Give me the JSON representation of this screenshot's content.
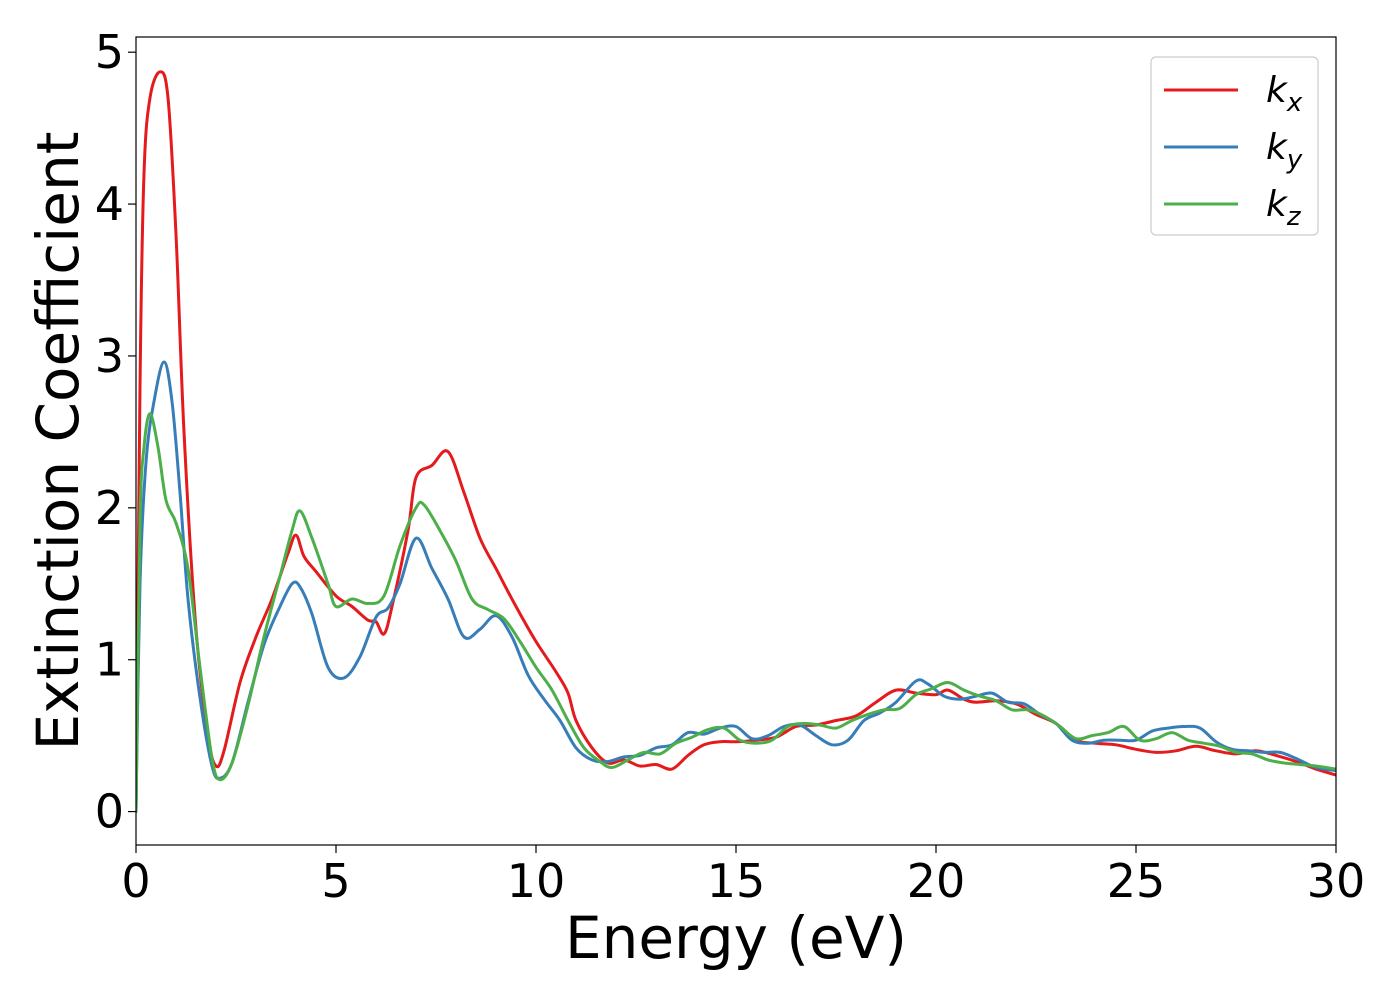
{
  "chart_data": {
    "type": "line",
    "xlabel": "Energy (eV)",
    "ylabel": "Extinction Coefficient",
    "xlim": [
      0,
      30
    ],
    "ylim": [
      -0.22,
      5.1
    ],
    "xticks": [
      0,
      5,
      10,
      15,
      20,
      25,
      30
    ],
    "yticks": [
      0,
      1,
      2,
      3,
      4,
      5
    ],
    "grid": false,
    "legend_position": "top-right",
    "series": [
      {
        "name": "k_x",
        "legend_base": "k",
        "legend_sub": "x",
        "color": "#e41a1c",
        "points": [
          [
            0,
            0
          ],
          [
            0.1,
            2.8
          ],
          [
            0.2,
            4.2
          ],
          [
            0.35,
            4.7
          ],
          [
            0.6,
            4.87
          ],
          [
            0.8,
            4.7
          ],
          [
            1.0,
            3.8
          ],
          [
            1.2,
            2.5
          ],
          [
            1.5,
            1.2
          ],
          [
            1.8,
            0.5
          ],
          [
            2.0,
            0.3
          ],
          [
            2.2,
            0.4
          ],
          [
            2.6,
            0.85
          ],
          [
            3.0,
            1.15
          ],
          [
            3.4,
            1.4
          ],
          [
            3.8,
            1.7
          ],
          [
            4.0,
            1.82
          ],
          [
            4.2,
            1.68
          ],
          [
            4.5,
            1.58
          ],
          [
            5.0,
            1.42
          ],
          [
            5.4,
            1.35
          ],
          [
            5.8,
            1.26
          ],
          [
            6.0,
            1.25
          ],
          [
            6.2,
            1.17
          ],
          [
            6.4,
            1.35
          ],
          [
            6.8,
            1.85
          ],
          [
            7.0,
            2.2
          ],
          [
            7.4,
            2.28
          ],
          [
            7.8,
            2.37
          ],
          [
            8.2,
            2.1
          ],
          [
            8.6,
            1.8
          ],
          [
            9.0,
            1.6
          ],
          [
            9.5,
            1.35
          ],
          [
            10.0,
            1.12
          ],
          [
            10.5,
            0.92
          ],
          [
            10.8,
            0.78
          ],
          [
            11.0,
            0.6
          ],
          [
            11.4,
            0.42
          ],
          [
            11.8,
            0.32
          ],
          [
            12.2,
            0.34
          ],
          [
            12.6,
            0.3
          ],
          [
            13.0,
            0.31
          ],
          [
            13.4,
            0.28
          ],
          [
            13.8,
            0.37
          ],
          [
            14.2,
            0.44
          ],
          [
            14.6,
            0.46
          ],
          [
            15.0,
            0.46
          ],
          [
            15.5,
            0.47
          ],
          [
            16.0,
            0.49
          ],
          [
            16.5,
            0.56
          ],
          [
            17.0,
            0.57
          ],
          [
            17.5,
            0.6
          ],
          [
            18.0,
            0.63
          ],
          [
            18.5,
            0.72
          ],
          [
            19.0,
            0.8
          ],
          [
            19.5,
            0.78
          ],
          [
            20.0,
            0.77
          ],
          [
            20.3,
            0.8
          ],
          [
            20.7,
            0.74
          ],
          [
            21.0,
            0.72
          ],
          [
            21.5,
            0.73
          ],
          [
            22.0,
            0.71
          ],
          [
            22.5,
            0.64
          ],
          [
            23.0,
            0.58
          ],
          [
            23.5,
            0.47
          ],
          [
            24.0,
            0.45
          ],
          [
            24.5,
            0.44
          ],
          [
            25.0,
            0.41
          ],
          [
            25.5,
            0.39
          ],
          [
            26.0,
            0.4
          ],
          [
            26.5,
            0.43
          ],
          [
            27.0,
            0.4
          ],
          [
            27.5,
            0.38
          ],
          [
            28.0,
            0.4
          ],
          [
            28.5,
            0.37
          ],
          [
            29.0,
            0.33
          ],
          [
            29.5,
            0.28
          ],
          [
            30.0,
            0.24
          ]
        ]
      },
      {
        "name": "k_y",
        "legend_base": "k",
        "legend_sub": "y",
        "color": "#377eb8",
        "points": [
          [
            0,
            0
          ],
          [
            0.1,
            1.5
          ],
          [
            0.25,
            2.3
          ],
          [
            0.45,
            2.7
          ],
          [
            0.7,
            2.96
          ],
          [
            0.9,
            2.7
          ],
          [
            1.1,
            2.1
          ],
          [
            1.3,
            1.4
          ],
          [
            1.6,
            0.75
          ],
          [
            1.9,
            0.3
          ],
          [
            2.1,
            0.22
          ],
          [
            2.4,
            0.32
          ],
          [
            2.8,
            0.72
          ],
          [
            3.2,
            1.1
          ],
          [
            3.6,
            1.35
          ],
          [
            3.9,
            1.5
          ],
          [
            4.1,
            1.48
          ],
          [
            4.4,
            1.3
          ],
          [
            4.8,
            0.95
          ],
          [
            5.2,
            0.88
          ],
          [
            5.6,
            1.02
          ],
          [
            6.0,
            1.28
          ],
          [
            6.3,
            1.34
          ],
          [
            6.6,
            1.5
          ],
          [
            7.0,
            1.8
          ],
          [
            7.4,
            1.6
          ],
          [
            7.8,
            1.4
          ],
          [
            8.2,
            1.15
          ],
          [
            8.6,
            1.2
          ],
          [
            9.0,
            1.29
          ],
          [
            9.4,
            1.15
          ],
          [
            9.8,
            0.9
          ],
          [
            10.2,
            0.74
          ],
          [
            10.6,
            0.6
          ],
          [
            11.0,
            0.42
          ],
          [
            11.4,
            0.34
          ],
          [
            11.8,
            0.33
          ],
          [
            12.2,
            0.36
          ],
          [
            12.6,
            0.37
          ],
          [
            13.0,
            0.42
          ],
          [
            13.4,
            0.44
          ],
          [
            13.8,
            0.52
          ],
          [
            14.2,
            0.51
          ],
          [
            14.6,
            0.55
          ],
          [
            15.0,
            0.56
          ],
          [
            15.4,
            0.48
          ],
          [
            15.8,
            0.5
          ],
          [
            16.2,
            0.56
          ],
          [
            16.6,
            0.57
          ],
          [
            17.0,
            0.5
          ],
          [
            17.4,
            0.44
          ],
          [
            17.8,
            0.47
          ],
          [
            18.2,
            0.6
          ],
          [
            18.6,
            0.65
          ],
          [
            19.0,
            0.72
          ],
          [
            19.5,
            0.86
          ],
          [
            19.8,
            0.84
          ],
          [
            20.2,
            0.76
          ],
          [
            20.6,
            0.74
          ],
          [
            21.0,
            0.76
          ],
          [
            21.4,
            0.78
          ],
          [
            21.8,
            0.72
          ],
          [
            22.2,
            0.71
          ],
          [
            22.6,
            0.64
          ],
          [
            23.0,
            0.58
          ],
          [
            23.4,
            0.47
          ],
          [
            23.8,
            0.45
          ],
          [
            24.2,
            0.47
          ],
          [
            24.6,
            0.47
          ],
          [
            25.0,
            0.47
          ],
          [
            25.4,
            0.53
          ],
          [
            25.8,
            0.55
          ],
          [
            26.2,
            0.56
          ],
          [
            26.6,
            0.55
          ],
          [
            27.0,
            0.46
          ],
          [
            27.4,
            0.41
          ],
          [
            27.8,
            0.4
          ],
          [
            28.2,
            0.39
          ],
          [
            28.6,
            0.39
          ],
          [
            29.0,
            0.35
          ],
          [
            29.5,
            0.29
          ],
          [
            30.0,
            0.27
          ]
        ]
      },
      {
        "name": "k_z",
        "legend_base": "k",
        "legend_sub": "z",
        "color": "#4daf4a",
        "points": [
          [
            0,
            0
          ],
          [
            0.1,
            1.9
          ],
          [
            0.2,
            2.4
          ],
          [
            0.35,
            2.62
          ],
          [
            0.55,
            2.4
          ],
          [
            0.75,
            2.05
          ],
          [
            1.0,
            1.9
          ],
          [
            1.3,
            1.6
          ],
          [
            1.6,
            0.95
          ],
          [
            1.9,
            0.35
          ],
          [
            2.1,
            0.21
          ],
          [
            2.4,
            0.32
          ],
          [
            2.8,
            0.7
          ],
          [
            3.2,
            1.15
          ],
          [
            3.6,
            1.55
          ],
          [
            3.9,
            1.85
          ],
          [
            4.1,
            1.98
          ],
          [
            4.4,
            1.8
          ],
          [
            4.8,
            1.5
          ],
          [
            5.0,
            1.35
          ],
          [
            5.4,
            1.4
          ],
          [
            5.8,
            1.37
          ],
          [
            6.2,
            1.42
          ],
          [
            6.6,
            1.75
          ],
          [
            7.0,
            2.0
          ],
          [
            7.2,
            2.02
          ],
          [
            7.6,
            1.85
          ],
          [
            8.0,
            1.65
          ],
          [
            8.4,
            1.4
          ],
          [
            8.8,
            1.33
          ],
          [
            9.2,
            1.27
          ],
          [
            9.6,
            1.12
          ],
          [
            10.0,
            0.95
          ],
          [
            10.4,
            0.8
          ],
          [
            10.8,
            0.6
          ],
          [
            11.2,
            0.42
          ],
          [
            11.6,
            0.33
          ],
          [
            11.9,
            0.29
          ],
          [
            12.3,
            0.34
          ],
          [
            12.7,
            0.39
          ],
          [
            13.1,
            0.38
          ],
          [
            13.5,
            0.45
          ],
          [
            13.9,
            0.49
          ],
          [
            14.3,
            0.54
          ],
          [
            14.7,
            0.55
          ],
          [
            15.1,
            0.47
          ],
          [
            15.5,
            0.45
          ],
          [
            15.9,
            0.47
          ],
          [
            16.3,
            0.56
          ],
          [
            16.7,
            0.58
          ],
          [
            17.1,
            0.57
          ],
          [
            17.5,
            0.55
          ],
          [
            17.9,
            0.6
          ],
          [
            18.3,
            0.64
          ],
          [
            18.7,
            0.67
          ],
          [
            19.1,
            0.68
          ],
          [
            19.5,
            0.77
          ],
          [
            19.9,
            0.81
          ],
          [
            20.3,
            0.85
          ],
          [
            20.7,
            0.8
          ],
          [
            21.1,
            0.76
          ],
          [
            21.5,
            0.73
          ],
          [
            21.9,
            0.67
          ],
          [
            22.3,
            0.67
          ],
          [
            22.7,
            0.63
          ],
          [
            23.1,
            0.56
          ],
          [
            23.5,
            0.48
          ],
          [
            23.9,
            0.5
          ],
          [
            24.3,
            0.52
          ],
          [
            24.7,
            0.56
          ],
          [
            25.1,
            0.47
          ],
          [
            25.5,
            0.48
          ],
          [
            25.9,
            0.52
          ],
          [
            26.3,
            0.47
          ],
          [
            26.7,
            0.45
          ],
          [
            27.1,
            0.43
          ],
          [
            27.5,
            0.39
          ],
          [
            27.9,
            0.38
          ],
          [
            28.3,
            0.34
          ],
          [
            28.7,
            0.32
          ],
          [
            29.1,
            0.31
          ],
          [
            29.5,
            0.3
          ],
          [
            30.0,
            0.28
          ]
        ]
      }
    ]
  }
}
